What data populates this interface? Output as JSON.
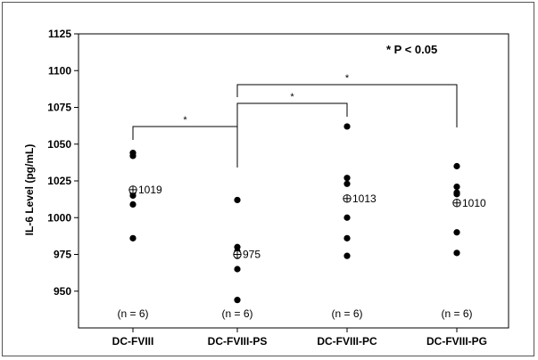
{
  "chart_data": {
    "type": "scatter",
    "ylabel": "IL-6 Level (pg/mL)",
    "xlabel": "",
    "ylim": [
      925,
      1125
    ],
    "yticks": [
      950,
      975,
      1000,
      1025,
      1050,
      1075,
      1100,
      1125
    ],
    "categories": [
      "DC-FVIII",
      "DC-FVIII-PS",
      "DC-FVIII-PC",
      "DC-FVIII-PG"
    ],
    "groups": [
      {
        "category": "DC-FVIII",
        "points": [
          1044,
          1042,
          1017,
          1015,
          1009,
          986
        ],
        "mean": 1019,
        "mean_label": "1019",
        "n_label": "(n = 6)"
      },
      {
        "category": "DC-FVIII-PS",
        "points": [
          1012,
          980,
          977,
          974,
          965,
          944
        ],
        "mean": 975,
        "mean_label": "975",
        "n_label": "(n = 6)"
      },
      {
        "category": "DC-FVIII-PC",
        "points": [
          1062,
          1027,
          1023,
          1000,
          986,
          974
        ],
        "mean": 1013,
        "mean_label": "1013",
        "n_label": "(n = 6)"
      },
      {
        "category": "DC-FVIII-PG",
        "points": [
          1035,
          1021,
          1017,
          990,
          976,
          1016
        ],
        "mean": 1010,
        "mean_label": "1010",
        "n_label": "(n = 6)"
      }
    ],
    "significance_note": "* P < 0.05",
    "comparisons": [
      {
        "from": "DC-FVIII",
        "to": "DC-FVIII-PS",
        "label": "*"
      },
      {
        "from": "DC-FVIII-PS",
        "to": "DC-FVIII-PC",
        "label": "*"
      },
      {
        "from": "DC-FVIII-PS",
        "to": "DC-FVIII-PG",
        "label": "*"
      }
    ],
    "grid": false,
    "legend": "none"
  }
}
